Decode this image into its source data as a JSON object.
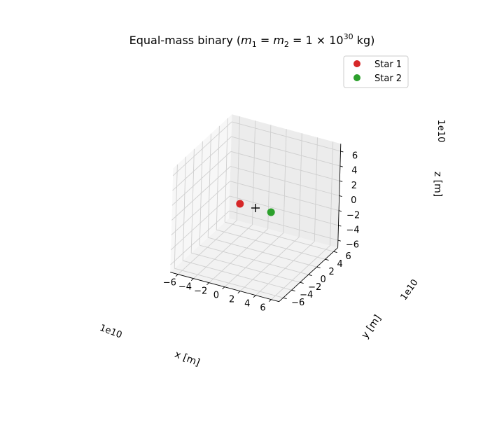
{
  "chart_data": {
    "type": "scatter",
    "projection": "3d",
    "title": "Equal-mass binary (",
    "title_math": {
      "m1": "m",
      "m1_sub": "1",
      "eq1": " = ",
      "m2": "m",
      "m2_sub": "2",
      "eq2": " = 1 × 10",
      "exp": "30",
      "unit": " kg)"
    },
    "xlabel": "x [m]",
    "ylabel": "y [m]",
    "zlabel": "z [m]",
    "offset_x": "1e10",
    "offset_y": "1e10",
    "offset_z": "1e10",
    "xlim": [
      -7,
      7
    ],
    "ylim": [
      -7,
      7
    ],
    "zlim": [
      -7,
      7
    ],
    "ticks": [
      -6,
      -4,
      -2,
      0,
      2,
      4,
      6
    ],
    "tick_labels": [
      "−6",
      "−4",
      "−2",
      "0",
      "2",
      "4",
      "6"
    ],
    "grid": true,
    "legend_position": "top-right",
    "series": [
      {
        "name": "Star 1",
        "color": "#d62728",
        "marker": "circle",
        "points": [
          {
            "x": -2.0,
            "y": 0.0,
            "z": 0.0
          }
        ]
      },
      {
        "name": "Star 2",
        "color": "#2ca02c",
        "marker": "circle",
        "points": [
          {
            "x": 2.0,
            "y": 0.0,
            "z": 0.0
          }
        ]
      }
    ],
    "center_of_mass": {
      "marker": "plus",
      "color": "#000000",
      "x": 0,
      "y": 0,
      "z": 0
    }
  }
}
